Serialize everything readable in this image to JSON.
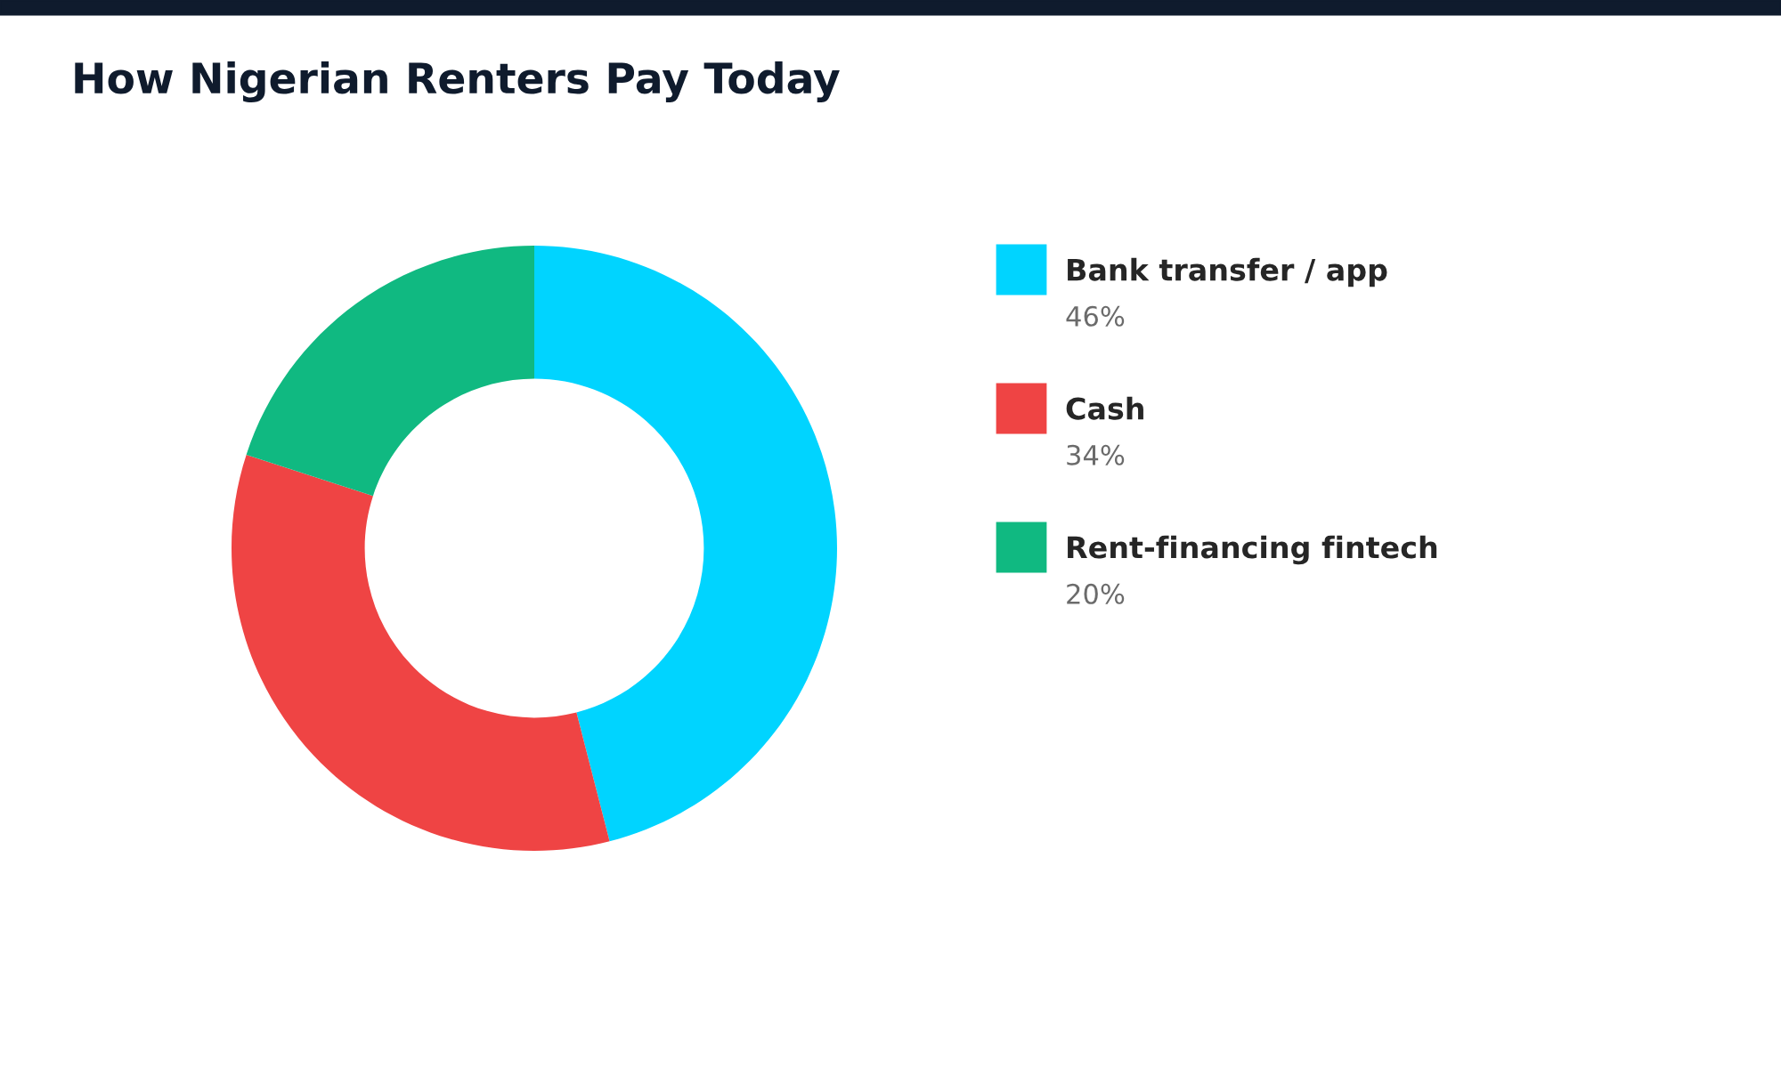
{
  "chart_data": {
    "type": "donut",
    "title": "How Nigerian Renters Pay Today",
    "categories": [
      "Bank transfer / app",
      "Cash",
      "Rent-financing fintech"
    ],
    "values": [
      46,
      34,
      20
    ],
    "colors": [
      "#00d4ff",
      "#ef4444",
      "#10b981"
    ],
    "value_labels": [
      "46%",
      "34%",
      "20%"
    ],
    "legend": "right"
  }
}
